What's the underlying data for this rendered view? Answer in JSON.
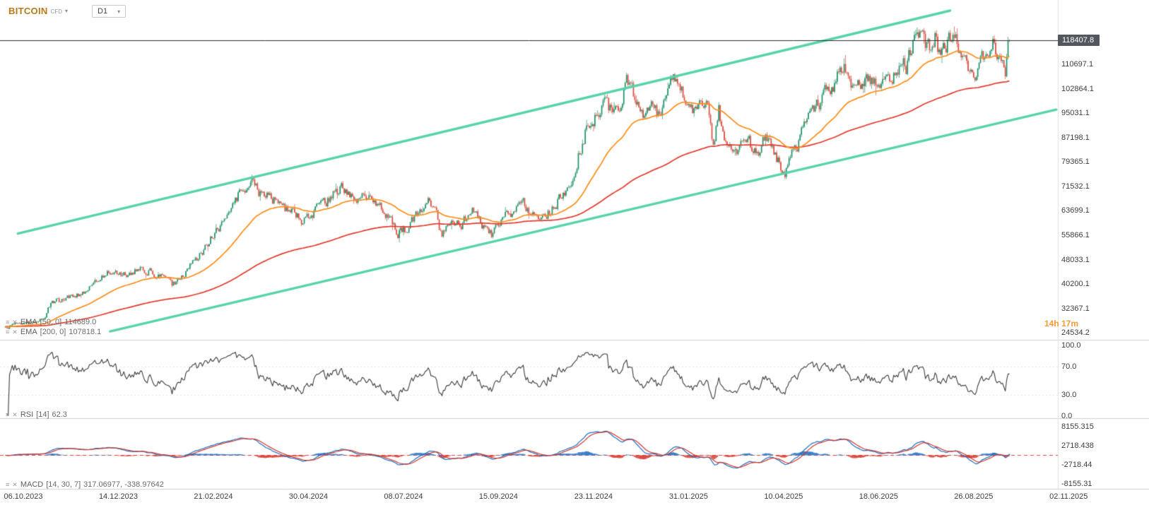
{
  "header": {
    "symbol": "BITCOIN",
    "type_badge": "CFD",
    "timeframe": "D1"
  },
  "price_axis": {
    "current": "118407.8",
    "labels": [
      "110697.1",
      "102864.1",
      "95031.1",
      "87198.1",
      "79365.1",
      "71532.1",
      "63699.1",
      "55866.1",
      "48033.1",
      "40200.1",
      "32367.1",
      "24534.2"
    ]
  },
  "countdown": "14h 17m",
  "indicators": {
    "ema50": {
      "name": "EMA",
      "params": "[50, 0]",
      "value": "114689.0"
    },
    "ema200": {
      "name": "EMA",
      "params": "[200, 0]",
      "value": "107818.1"
    },
    "rsi": {
      "name": "RSI",
      "params": "[14]",
      "value": "62.3",
      "axis_labels": [
        "100.0",
        "70.0",
        "30.0",
        "0.0"
      ]
    },
    "macd": {
      "name": "MACD",
      "params": "[14, 30, 7]",
      "value": "317.06977,  -338.97642",
      "axis_labels": [
        "8155.315",
        "2718.438",
        "-2718.44",
        "-8155.31"
      ]
    }
  },
  "time_axis": {
    "interval_days": 69,
    "labels": [
      "06.10.2023",
      "14.12.2023",
      "21.02.2024",
      "30.04.2024",
      "08.07.2024",
      "15.09.2024",
      "23.11.2024",
      "31.01.2025",
      "10.04.2025",
      "18.06.2025",
      "26.08.2025",
      "02.11.2025"
    ]
  },
  "chart_data": {
    "type": "candlestick",
    "symbol": "BITCOIN CFD",
    "timeframe": "D1",
    "last_price": 118407.8,
    "price_axis_range": [
      22300,
      131400
    ],
    "ema_fast_period": 50,
    "ema_slow_period": 200,
    "rsi_period": 14,
    "macd_periods": [
      14,
      30,
      7
    ],
    "price_anchors": [
      [
        -13,
        26300
      ],
      [
        0,
        27950
      ],
      [
        8,
        27600
      ],
      [
        16,
        29900
      ],
      [
        20,
        34300
      ],
      [
        28,
        35100
      ],
      [
        36,
        36900
      ],
      [
        44,
        37300
      ],
      [
        52,
        40300
      ],
      [
        60,
        43700
      ],
      [
        68,
        43900
      ],
      [
        76,
        42800
      ],
      [
        84,
        45200
      ],
      [
        92,
        44100
      ],
      [
        100,
        42600
      ],
      [
        108,
        39900
      ],
      [
        116,
        42500
      ],
      [
        124,
        47100
      ],
      [
        132,
        51900
      ],
      [
        140,
        57100
      ],
      [
        148,
        61500
      ],
      [
        156,
        68300
      ],
      [
        162,
        71400
      ],
      [
        166,
        73100
      ],
      [
        172,
        68900
      ],
      [
        178,
        70500
      ],
      [
        186,
        64900
      ],
      [
        194,
        63900
      ],
      [
        202,
        61000
      ],
      [
        210,
        63100
      ],
      [
        218,
        64900
      ],
      [
        226,
        69900
      ],
      [
        232,
        71100
      ],
      [
        240,
        67800
      ],
      [
        248,
        69000
      ],
      [
        256,
        66200
      ],
      [
        264,
        61800
      ],
      [
        272,
        57000
      ],
      [
        280,
        58000
      ],
      [
        288,
        64800
      ],
      [
        294,
        67900
      ],
      [
        300,
        64600
      ],
      [
        304,
        54300
      ],
      [
        310,
        60900
      ],
      [
        318,
        59300
      ],
      [
        326,
        63900
      ],
      [
        334,
        58900
      ],
      [
        340,
        56100
      ],
      [
        348,
        61700
      ],
      [
        356,
        63200
      ],
      [
        364,
        65500
      ],
      [
        372,
        61700
      ],
      [
        380,
        62200
      ],
      [
        388,
        67000
      ],
      [
        394,
        69400
      ],
      [
        399,
        74500
      ],
      [
        404,
        83500
      ],
      [
        409,
        90500
      ],
      [
        415,
        93400
      ],
      [
        421,
        97700
      ],
      [
        427,
        95000
      ],
      [
        433,
        99200
      ],
      [
        437,
        103600
      ],
      [
        441,
        105900
      ],
      [
        445,
        97800
      ],
      [
        450,
        94300
      ],
      [
        456,
        98800
      ],
      [
        461,
        94600
      ],
      [
        466,
        100300
      ],
      [
        471,
        105000
      ],
      [
        476,
        104300
      ],
      [
        481,
        101300
      ],
      [
        486,
        97400
      ],
      [
        492,
        96900
      ],
      [
        497,
        96100
      ],
      [
        501,
        85900
      ],
      [
        505,
        96300
      ],
      [
        509,
        87200
      ],
      [
        514,
        83900
      ],
      [
        519,
        84400
      ],
      [
        524,
        87600
      ],
      [
        529,
        83600
      ],
      [
        534,
        83000
      ],
      [
        539,
        87000
      ],
      [
        544,
        84000
      ],
      [
        549,
        79000
      ],
      [
        553,
        76600
      ],
      [
        557,
        83600
      ],
      [
        562,
        85100
      ],
      [
        567,
        93900
      ],
      [
        572,
        94700
      ],
      [
        577,
        97000
      ],
      [
        582,
        103400
      ],
      [
        587,
        104000
      ],
      [
        592,
        106500
      ],
      [
        597,
        109200
      ],
      [
        602,
        104500
      ],
      [
        607,
        105600
      ],
      [
        612,
        107800
      ],
      [
        617,
        105000
      ],
      [
        622,
        101500
      ],
      [
        627,
        105600
      ],
      [
        632,
        107300
      ],
      [
        637,
        107900
      ],
      [
        642,
        110300
      ],
      [
        646,
        116000
      ],
      [
        650,
        119100
      ],
      [
        654,
        117700
      ],
      [
        658,
        115600
      ],
      [
        662,
        118600
      ],
      [
        666,
        113800
      ],
      [
        670,
        117400
      ],
      [
        674,
        121500
      ],
      [
        677,
        118900
      ],
      [
        680,
        114700
      ],
      [
        683,
        112400
      ],
      [
        686,
        110800
      ],
      [
        689,
        108600
      ],
      [
        692,
        109700
      ],
      [
        695,
        111100
      ],
      [
        698,
        112800
      ],
      [
        701,
        115900
      ],
      [
        704,
        116500
      ],
      [
        707,
        114900
      ],
      [
        710,
        112100
      ],
      [
        713,
        109500
      ],
      [
        716,
        118407.8
      ]
    ],
    "channel": {
      "upper": [
        [
          -4,
          56400
        ],
        [
          673,
          128000
        ]
      ],
      "lower": [
        [
          63,
          25000
        ],
        [
          750,
          96200
        ]
      ]
    },
    "colors": {
      "up": "#1f9268",
      "down": "#dd4b3e",
      "ema_fast": "#ff8d1a",
      "ema_slow": "#e23a2e",
      "channel": "#57d3ab",
      "rsi_line": "#3c3c3c",
      "macd_line": "#1b6fc2",
      "macd_signal": "#d2352b",
      "macd_zero": "#e0483e",
      "hist_pos": "#1b6fc2",
      "hist_neg": "#d2352b",
      "price_line": "#2e2e2e",
      "badge_bg": "#53575d",
      "countdown": "#f29b38",
      "symbol": "#b8791a"
    }
  }
}
